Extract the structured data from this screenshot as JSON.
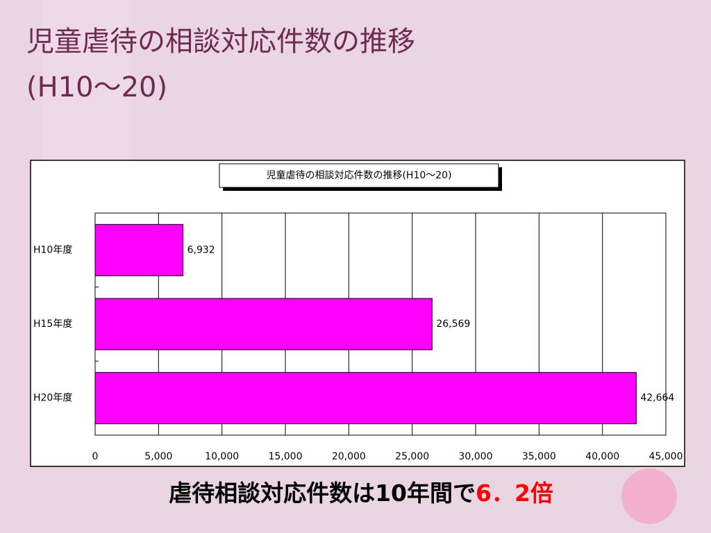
{
  "slide": {
    "title_lines": [
      "児童虐待の相談対応件数の推移",
      "(H10～20)"
    ],
    "caption": {
      "text": "虐待相談対応件数は10年間で",
      "highlight": "6．2倍"
    }
  },
  "chart_data": {
    "type": "bar",
    "orientation": "horizontal",
    "title": "児童虐待の相談対応件数の推移(H10～20)",
    "categories": [
      "H10年度",
      "H15年度",
      "H20年度"
    ],
    "values": [
      6932,
      26569,
      42664
    ],
    "value_labels": [
      "6,932",
      "26,569",
      "42,664"
    ],
    "color": "#ff00ff",
    "xlim": [
      0,
      45000
    ],
    "xticks": [
      0,
      {
        "value": 5000,
        "label": "5,000"
      },
      {
        "value": 10000,
        "label": "10,000"
      },
      {
        "value": 15000,
        "label": "15,000"
      },
      {
        "value": 20000,
        "label": "20,000"
      },
      {
        "value": 25000,
        "label": "25,000"
      },
      {
        "value": 30000,
        "label": "30,000"
      },
      {
        "value": 35000,
        "label": "35,000"
      },
      {
        "value": 40000,
        "label": "40,000"
      },
      {
        "value": 45000,
        "label": "45,000"
      }
    ],
    "grid": true
  }
}
